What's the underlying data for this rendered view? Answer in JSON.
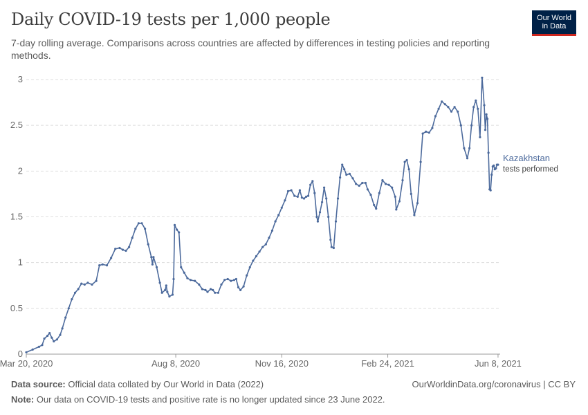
{
  "title": "Daily COVID-19 tests per 1,000 people",
  "subtitle": "7-day rolling average. Comparisons across countries are affected by differences in testing policies and reporting methods.",
  "logo": {
    "line1": "Our World",
    "line2": "in Data"
  },
  "footer": {
    "source_label": "Data source:",
    "source_text": " Official data collated by Our World in Data (2022)",
    "note_label": "Note:",
    "note_text": " Our data on COVID-19 tests and positive rate is no longer updated since 23 June 2022.",
    "credit": "OurWorldinData.org/coronavirus | CC BY"
  },
  "colors": {
    "series": "#4c6a9c",
    "grid": "#dddddd",
    "axis": "#999999",
    "text": "#5b5b5b"
  },
  "chart_data": {
    "type": "line",
    "title": "Daily COVID-19 tests per 1,000 people",
    "xlabel": "",
    "ylabel": "",
    "ylim": [
      0,
      3
    ],
    "yticks": [
      "0",
      "0.5",
      "1",
      "1.5",
      "2",
      "2.5",
      "3"
    ],
    "xticks": [
      "Mar 20, 2020",
      "Aug 8, 2020",
      "Nov 16, 2020",
      "Feb 24, 2021",
      "Jun 8, 2021"
    ],
    "xrange": [
      "2020-03-20",
      "2021-06-10"
    ],
    "grid": "horizontal",
    "series": [
      {
        "name": "Kazakhstan",
        "sublabel": "tests performed",
        "points": [
          [
            "2020-03-20",
            0.02
          ],
          [
            "2020-03-26",
            0.05
          ],
          [
            "2020-04-01",
            0.08
          ],
          [
            "2020-04-04",
            0.1
          ],
          [
            "2020-04-06",
            0.17
          ],
          [
            "2020-04-09",
            0.2
          ],
          [
            "2020-04-11",
            0.23
          ],
          [
            "2020-04-13",
            0.18
          ],
          [
            "2020-04-15",
            0.14
          ],
          [
            "2020-04-18",
            0.16
          ],
          [
            "2020-04-21",
            0.21
          ],
          [
            "2020-04-23",
            0.28
          ],
          [
            "2020-04-26",
            0.4
          ],
          [
            "2020-04-29",
            0.5
          ],
          [
            "2020-05-02",
            0.6
          ],
          [
            "2020-05-05",
            0.67
          ],
          [
            "2020-05-08",
            0.71
          ],
          [
            "2020-05-11",
            0.77
          ],
          [
            "2020-05-14",
            0.76
          ],
          [
            "2020-05-17",
            0.78
          ],
          [
            "2020-05-21",
            0.76
          ],
          [
            "2020-05-25",
            0.8
          ],
          [
            "2020-05-28",
            0.97
          ],
          [
            "2020-05-31",
            0.98
          ],
          [
            "2020-06-04",
            0.97
          ],
          [
            "2020-06-08",
            1.05
          ],
          [
            "2020-06-12",
            1.15
          ],
          [
            "2020-06-16",
            1.16
          ],
          [
            "2020-06-19",
            1.14
          ],
          [
            "2020-06-22",
            1.13
          ],
          [
            "2020-06-25",
            1.17
          ],
          [
            "2020-06-28",
            1.27
          ],
          [
            "2020-07-01",
            1.37
          ],
          [
            "2020-07-04",
            1.43
          ],
          [
            "2020-07-07",
            1.43
          ],
          [
            "2020-07-10",
            1.37
          ],
          [
            "2020-07-13",
            1.2
          ],
          [
            "2020-07-16",
            1.06
          ],
          [
            "2020-07-17",
            0.98
          ],
          [
            "2020-07-18",
            1.06
          ],
          [
            "2020-07-21",
            0.95
          ],
          [
            "2020-07-24",
            0.78
          ],
          [
            "2020-07-26",
            0.67
          ],
          [
            "2020-07-29",
            0.7
          ],
          [
            "2020-07-30",
            0.75
          ],
          [
            "2020-07-31",
            0.68
          ],
          [
            "2020-08-02",
            0.63
          ],
          [
            "2020-08-05",
            0.65
          ],
          [
            "2020-08-06",
            0.82
          ],
          [
            "2020-08-07",
            1.41
          ],
          [
            "2020-08-09",
            1.36
          ],
          [
            "2020-08-11",
            1.33
          ],
          [
            "2020-08-13",
            0.95
          ],
          [
            "2020-08-16",
            0.89
          ],
          [
            "2020-08-19",
            0.83
          ],
          [
            "2020-08-22",
            0.81
          ],
          [
            "2020-08-26",
            0.8
          ],
          [
            "2020-08-30",
            0.76
          ],
          [
            "2020-09-02",
            0.71
          ],
          [
            "2020-09-05",
            0.7
          ],
          [
            "2020-09-07",
            0.68
          ],
          [
            "2020-09-10",
            0.71
          ],
          [
            "2020-09-12",
            0.7
          ],
          [
            "2020-09-14",
            0.67
          ],
          [
            "2020-09-17",
            0.67
          ],
          [
            "2020-09-20",
            0.76
          ],
          [
            "2020-09-23",
            0.81
          ],
          [
            "2020-09-26",
            0.82
          ],
          [
            "2020-09-29",
            0.8
          ],
          [
            "2020-10-02",
            0.81
          ],
          [
            "2020-10-04",
            0.82
          ],
          [
            "2020-10-06",
            0.73
          ],
          [
            "2020-10-08",
            0.7
          ],
          [
            "2020-10-11",
            0.74
          ],
          [
            "2020-10-14",
            0.86
          ],
          [
            "2020-10-17",
            0.95
          ],
          [
            "2020-10-20",
            1.02
          ],
          [
            "2020-10-23",
            1.07
          ],
          [
            "2020-10-26",
            1.12
          ],
          [
            "2020-10-29",
            1.17
          ],
          [
            "2020-11-01",
            1.2
          ],
          [
            "2020-11-04",
            1.27
          ],
          [
            "2020-11-07",
            1.35
          ],
          [
            "2020-11-10",
            1.45
          ],
          [
            "2020-11-13",
            1.52
          ],
          [
            "2020-11-16",
            1.6
          ],
          [
            "2020-11-19",
            1.68
          ],
          [
            "2020-11-22",
            1.78
          ],
          [
            "2020-11-25",
            1.79
          ],
          [
            "2020-11-28",
            1.73
          ],
          [
            "2020-12-01",
            1.72
          ],
          [
            "2020-12-03",
            1.79
          ],
          [
            "2020-12-05",
            1.71
          ],
          [
            "2020-12-07",
            1.7
          ],
          [
            "2020-12-09",
            1.72
          ],
          [
            "2020-12-11",
            1.73
          ],
          [
            "2020-12-13",
            1.85
          ],
          [
            "2020-12-15",
            1.89
          ],
          [
            "2020-12-17",
            1.76
          ],
          [
            "2020-12-19",
            1.5
          ],
          [
            "2020-12-20",
            1.45
          ],
          [
            "2020-12-22",
            1.55
          ],
          [
            "2020-12-24",
            1.66
          ],
          [
            "2020-12-26",
            1.82
          ],
          [
            "2020-12-28",
            1.7
          ],
          [
            "2020-12-30",
            1.5
          ],
          [
            "2021-01-01",
            1.25
          ],
          [
            "2021-01-02",
            1.17
          ],
          [
            "2021-01-04",
            1.16
          ],
          [
            "2021-01-06",
            1.45
          ],
          [
            "2021-01-08",
            1.7
          ],
          [
            "2021-01-10",
            1.93
          ],
          [
            "2021-01-12",
            2.07
          ],
          [
            "2021-01-14",
            2.02
          ],
          [
            "2021-01-16",
            1.96
          ],
          [
            "2021-01-19",
            1.97
          ],
          [
            "2021-01-22",
            1.92
          ],
          [
            "2021-01-25",
            1.86
          ],
          [
            "2021-01-28",
            1.84
          ],
          [
            "2021-01-31",
            1.87
          ],
          [
            "2021-02-03",
            1.87
          ],
          [
            "2021-02-05",
            1.8
          ],
          [
            "2021-02-08",
            1.74
          ],
          [
            "2021-02-11",
            1.63
          ],
          [
            "2021-02-13",
            1.59
          ],
          [
            "2021-02-16",
            1.76
          ],
          [
            "2021-02-19",
            1.9
          ],
          [
            "2021-02-22",
            1.86
          ],
          [
            "2021-02-25",
            1.85
          ],
          [
            "2021-02-28",
            1.82
          ],
          [
            "2021-03-03",
            1.72
          ],
          [
            "2021-03-04",
            1.58
          ],
          [
            "2021-03-07",
            1.67
          ],
          [
            "2021-03-10",
            1.9
          ],
          [
            "2021-03-12",
            2.1
          ],
          [
            "2021-03-14",
            2.12
          ],
          [
            "2021-03-16",
            2.02
          ],
          [
            "2021-03-18",
            1.75
          ],
          [
            "2021-03-21",
            1.52
          ],
          [
            "2021-03-24",
            1.65
          ],
          [
            "2021-03-27",
            2.1
          ],
          [
            "2021-03-29",
            2.41
          ],
          [
            "2021-04-01",
            2.43
          ],
          [
            "2021-04-04",
            2.42
          ],
          [
            "2021-04-07",
            2.47
          ],
          [
            "2021-04-10",
            2.6
          ],
          [
            "2021-04-13",
            2.68
          ],
          [
            "2021-04-16",
            2.76
          ],
          [
            "2021-04-19",
            2.73
          ],
          [
            "2021-04-22",
            2.7
          ],
          [
            "2021-04-25",
            2.65
          ],
          [
            "2021-04-28",
            2.7
          ],
          [
            "2021-05-01",
            2.65
          ],
          [
            "2021-05-04",
            2.5
          ],
          [
            "2021-05-07",
            2.25
          ],
          [
            "2021-05-10",
            2.14
          ],
          [
            "2021-05-12",
            2.25
          ],
          [
            "2021-05-14",
            2.5
          ],
          [
            "2021-05-16",
            2.7
          ],
          [
            "2021-05-18",
            2.77
          ],
          [
            "2021-05-20",
            2.68
          ],
          [
            "2021-05-22",
            2.37
          ],
          [
            "2021-05-24",
            3.02
          ],
          [
            "2021-05-26",
            2.72
          ],
          [
            "2021-05-27",
            2.45
          ],
          [
            "2021-05-28",
            2.62
          ],
          [
            "2021-05-29",
            2.57
          ],
          [
            "2021-05-30",
            2.2
          ],
          [
            "2021-05-31",
            1.8
          ],
          [
            "2021-06-01",
            1.79
          ],
          [
            "2021-06-02",
            1.96
          ],
          [
            "2021-06-03",
            2.05
          ],
          [
            "2021-06-04",
            2.06
          ],
          [
            "2021-06-05",
            2.02
          ],
          [
            "2021-06-06",
            2.03
          ],
          [
            "2021-06-07",
            2.07
          ],
          [
            "2021-06-08",
            2.07
          ]
        ]
      }
    ]
  }
}
